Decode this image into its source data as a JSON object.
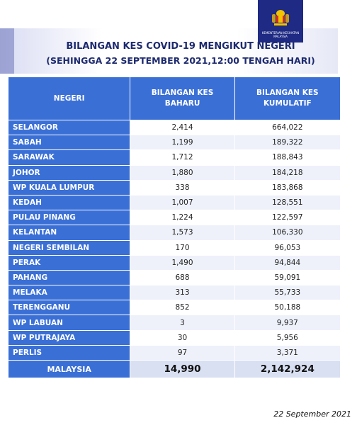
{
  "logo": {
    "emblem": "malaysia-coat-of-arms-icon",
    "text": "KEMENTERIAN KESIHATAN MALAYSIA"
  },
  "title": {
    "line1": "BILANGAN KES COVID-19 MENGIKUT NEGERI",
    "line2": "(SEHINGGA 22 SEPTEMBER 2021,12:00 TENGAH HARI)"
  },
  "table": {
    "headers": [
      "NEGERI",
      "BILANGAN KES\nBAHARU",
      "BILANGAN KES\nKUMULATIF"
    ],
    "rows": [
      [
        "SELANGOR",
        "2,414",
        "664,022"
      ],
      [
        "SABAH",
        "1,199",
        "189,322"
      ],
      [
        "SARAWAK",
        "1,712",
        "188,843"
      ],
      [
        "JOHOR",
        "1,880",
        "184,218"
      ],
      [
        "WP KUALA LUMPUR",
        "338",
        "183,868"
      ],
      [
        "KEDAH",
        "1,007",
        "128,551"
      ],
      [
        "PULAU PINANG",
        "1,224",
        "122,597"
      ],
      [
        "KELANTAN",
        "1,573",
        "106,330"
      ],
      [
        "NEGERI SEMBILAN",
        "170",
        "96,053"
      ],
      [
        "PERAK",
        "1,490",
        "94,844"
      ],
      [
        "PAHANG",
        "688",
        "59,091"
      ],
      [
        "MELAKA",
        "313",
        "55,733"
      ],
      [
        "TERENGGANU",
        "852",
        "50,188"
      ],
      [
        "WP LABUAN",
        "3",
        "9,937"
      ],
      [
        "WP PUTRAJAYA",
        "30",
        "5,956"
      ],
      [
        "PERLIS",
        "97",
        "3,371"
      ]
    ],
    "total": [
      "MALAYSIA",
      "14,990",
      "2,142,924"
    ]
  },
  "footer": {
    "date": "22 September 2021"
  },
  "colors": {
    "header": "#3a6fd6",
    "title": "#1d2a6e",
    "logo_bg": "#1e2a83"
  }
}
